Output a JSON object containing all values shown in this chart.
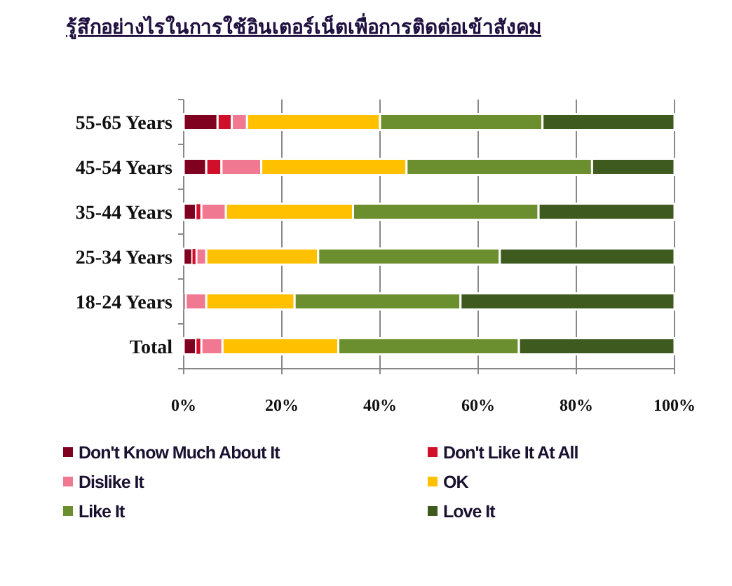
{
  "chart_data": {
    "type": "bar",
    "orientation": "horizontal",
    "stacked": true,
    "title": "รู้สึกอย่างไรในการใช้อินเตอร์เน็ตเพื่อการติดต่อเข้าสังคม",
    "categories": [
      "55-65 Years",
      "45-54 Years",
      "35-44 Years",
      "25-34 Years",
      "18-24 Years",
      "Total"
    ],
    "series": [
      {
        "name": "Don't Know Much About It",
        "color": "#800020",
        "values": [
          6.9,
          4.6,
          2.5,
          1.7,
          0.4,
          2.5
        ]
      },
      {
        "name": "Don't Like It At All",
        "color": "#d0102a",
        "values": [
          2.9,
          3.1,
          1.1,
          0.9,
          0,
          1.1
        ]
      },
      {
        "name": "Dislike It",
        "color": "#f07890",
        "values": [
          3.1,
          8.1,
          5.0,
          2.0,
          4.2,
          4.3
        ]
      },
      {
        "name": "OK",
        "color": "#ffc000",
        "values": [
          27.1,
          29.6,
          25.9,
          22.8,
          18.0,
          23.6
        ]
      },
      {
        "name": "Like It",
        "color": "#6b8e2e",
        "values": [
          33.1,
          37.8,
          37.8,
          37.0,
          33.8,
          36.8
        ]
      },
      {
        "name": "Love It",
        "color": "#3f5a1e",
        "values": [
          26.9,
          16.8,
          27.7,
          35.6,
          43.6,
          31.7
        ]
      }
    ],
    "xlim": [
      0,
      100
    ],
    "xticks": [
      {
        "value": 0,
        "label": "0%"
      },
      {
        "value": 20,
        "label": "20%"
      },
      {
        "value": 40,
        "label": "40%"
      },
      {
        "value": 60,
        "label": "60%"
      },
      {
        "value": 80,
        "label": "80%"
      },
      {
        "value": 100,
        "label": "100%"
      }
    ],
    "grid": "x",
    "legend": "bottom"
  }
}
